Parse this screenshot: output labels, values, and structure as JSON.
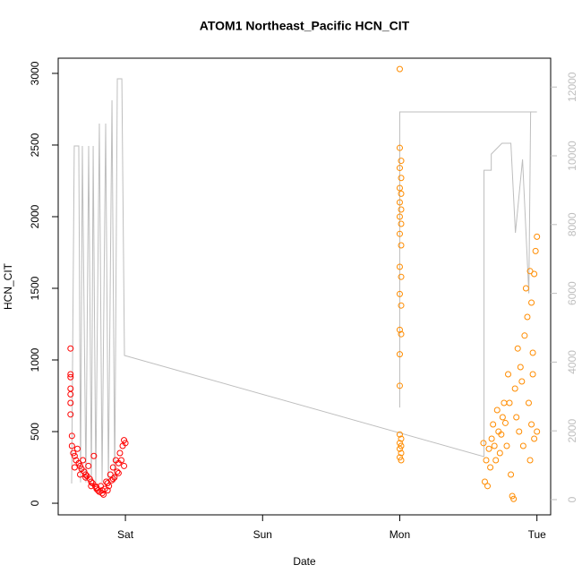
{
  "chart_data": {
    "type": "scatter",
    "title": "ATOM1 Northeast_Pacific HCN_CIT",
    "x_label": "Date",
    "y_label": "HCN_CIT",
    "xlim": [
      -0.49,
      3.1
    ],
    "xticks": [
      {
        "value": 0,
        "label": "Sat"
      },
      {
        "value": 1,
        "label": "Sun"
      },
      {
        "value": 2,
        "label": "Mon"
      },
      {
        "value": 3,
        "label": "Tue"
      }
    ],
    "ylim": [
      -81,
      3106
    ],
    "yticks": [
      0,
      500,
      1000,
      1500,
      2000,
      2500,
      3000
    ],
    "y2lim": [
      -443,
      12839
    ],
    "y2ticks": [
      0,
      2000,
      4000,
      6000,
      8000,
      10000,
      12000
    ],
    "y2_color": "#bebebe",
    "series": [
      {
        "type": "line",
        "axis": "y2",
        "color": "#bebebe",
        "x": [
          -0.392,
          -0.373,
          -0.34,
          -0.327,
          -0.314,
          -0.288,
          -0.268,
          -0.248,
          -0.235,
          -0.216,
          -0.19,
          -0.17,
          -0.144,
          -0.124,
          -0.098,
          -0.078,
          -0.059,
          -0.026,
          -0.007,
          2.614,
          2.614,
          2.667,
          2.667,
          2.745,
          2.81,
          2.843,
          2.895,
          2.941,
          2.954,
          3.0,
          3.0,
          2.0,
          2.0
        ],
        "values": [
          469,
          10286,
          10286,
          500,
          10286,
          500,
          10286,
          500,
          10286,
          500,
          10937,
          500,
          10937,
          500,
          11615,
          500,
          12240,
          12240,
          4193,
          1250,
          9580,
          9580,
          10050,
          10364,
          10364,
          7760,
          9896,
          6000,
          11276,
          11276,
          11276,
          11276,
          2680
        ]
      },
      {
        "type": "scatter",
        "color": "#ff0000",
        "x": [
          -0.4,
          -0.4,
          -0.4,
          -0.4,
          -0.4,
          -0.4,
          -0.4,
          -0.39,
          -0.39,
          -0.38,
          -0.37,
          -0.36,
          -0.35,
          -0.34,
          -0.33,
          -0.32,
          -0.31,
          -0.3,
          -0.29,
          -0.28,
          -0.27,
          -0.26,
          -0.25,
          -0.24,
          -0.23,
          -0.22,
          -0.21,
          -0.2,
          -0.19,
          -0.18,
          -0.17,
          -0.16,
          -0.15,
          -0.14,
          -0.13,
          -0.12,
          -0.11,
          -0.1,
          -0.09,
          -0.08,
          -0.07,
          -0.06,
          -0.05,
          -0.04,
          -0.03,
          -0.02,
          -0.01,
          0.0,
          -0.37,
          -0.33,
          -0.29,
          -0.25,
          -0.21,
          -0.17,
          -0.13,
          -0.09,
          -0.05,
          -0.01
        ],
        "values": [
          1080,
          900,
          880,
          800,
          760,
          700,
          620,
          470,
          400,
          350,
          330,
          300,
          380,
          280,
          260,
          240,
          300,
          220,
          200,
          190,
          260,
          170,
          150,
          140,
          330,
          120,
          100,
          90,
          80,
          120,
          70,
          60,
          100,
          150,
          90,
          120,
          200,
          160,
          250,
          180,
          300,
          220,
          280,
          350,
          300,
          400,
          440,
          420,
          250,
          200,
          180,
          120,
          110,
          90,
          140,
          170,
          210,
          260
        ]
      },
      {
        "type": "scatter",
        "color": "#ff8c00",
        "x": [
          2.0,
          2.0,
          2.01,
          2.0,
          2.01,
          2.0,
          2.01,
          2.0,
          2.01,
          2.0,
          2.01,
          2.0,
          2.01,
          2.0,
          2.01,
          2.0,
          2.01,
          2.0,
          2.01,
          2.0,
          2.0,
          2.0,
          2.01,
          2.0,
          2.01,
          2.0,
          2.01,
          2.0,
          2.01,
          2.61,
          2.62,
          2.63,
          2.64,
          2.65,
          2.66,
          2.67,
          2.68,
          2.69,
          2.7,
          2.71,
          2.72,
          2.73,
          2.74,
          2.75,
          2.76,
          2.77,
          2.78,
          2.79,
          2.8,
          2.81,
          2.82,
          2.83,
          2.84,
          2.85,
          2.86,
          2.87,
          2.88,
          2.89,
          2.9,
          2.91,
          2.92,
          2.93,
          2.94,
          2.95,
          2.96,
          2.97,
          2.98,
          2.99,
          3.0,
          2.95,
          2.96,
          2.97,
          2.98,
          3.0
        ],
        "values": [
          3030,
          2480,
          2390,
          2340,
          2270,
          2200,
          2160,
          2100,
          2050,
          2000,
          1950,
          1880,
          1800,
          1650,
          1580,
          1460,
          1380,
          1210,
          1180,
          1040,
          820,
          480,
          450,
          420,
          400,
          380,
          350,
          320,
          300,
          420,
          150,
          300,
          120,
          380,
          250,
          450,
          550,
          400,
          300,
          650,
          500,
          350,
          480,
          600,
          700,
          560,
          400,
          900,
          700,
          200,
          50,
          30,
          800,
          600,
          1080,
          500,
          950,
          850,
          400,
          1170,
          1500,
          1300,
          700,
          1620,
          1400,
          1050,
          1600,
          1760,
          1860,
          300,
          550,
          900,
          450,
          500
        ]
      }
    ]
  }
}
